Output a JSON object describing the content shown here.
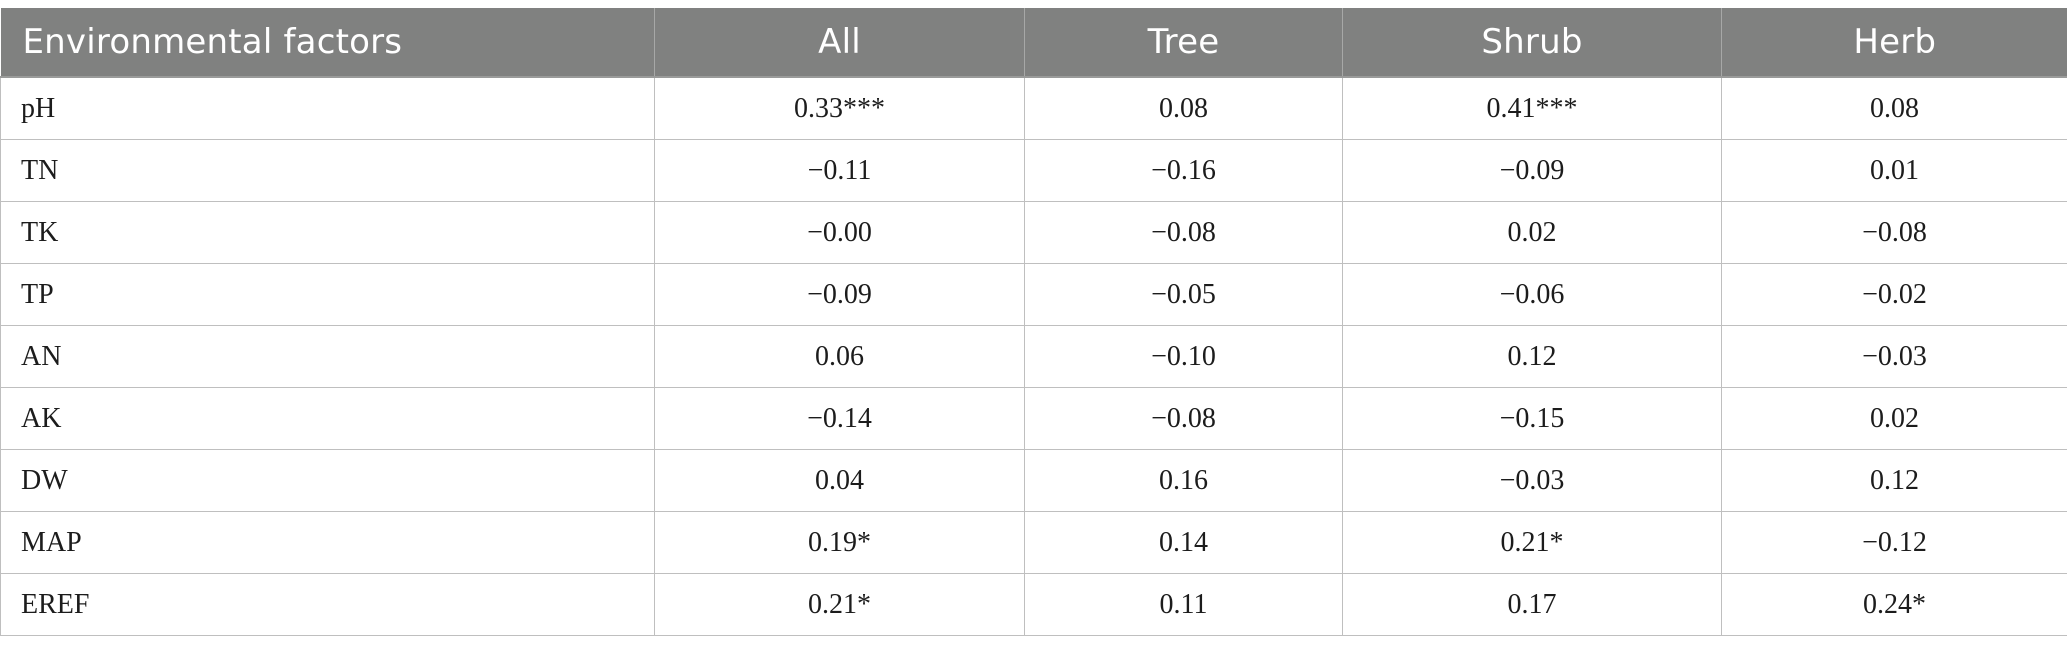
{
  "table": {
    "headers": [
      "Environmental factors",
      "All",
      "Tree",
      "Shrub",
      "Herb"
    ],
    "rows": [
      [
        "pH",
        "0.33***",
        "0.08",
        "0.41***",
        "0.08"
      ],
      [
        "TN",
        "−0.11",
        "−0.16",
        "−0.09",
        "0.01"
      ],
      [
        "TK",
        "−0.00",
        "−0.08",
        "0.02",
        "−0.08"
      ],
      [
        "TP",
        "−0.09",
        "−0.05",
        "−0.06",
        "−0.02"
      ],
      [
        "AN",
        "0.06",
        "−0.10",
        "0.12",
        "−0.03"
      ],
      [
        "AK",
        "−0.14",
        "−0.08",
        "−0.15",
        "0.02"
      ],
      [
        "DW",
        "0.04",
        "0.16",
        "−0.03",
        "0.12"
      ],
      [
        "MAP",
        "0.19*",
        "0.14",
        "0.21*",
        "−0.12"
      ],
      [
        "EREF",
        "0.21*",
        "0.11",
        "0.17",
        "0.24*"
      ]
    ]
  },
  "colors": {
    "header_bg": "#808180",
    "header_text": "#ffffff",
    "grid": "#bfbfbf"
  }
}
